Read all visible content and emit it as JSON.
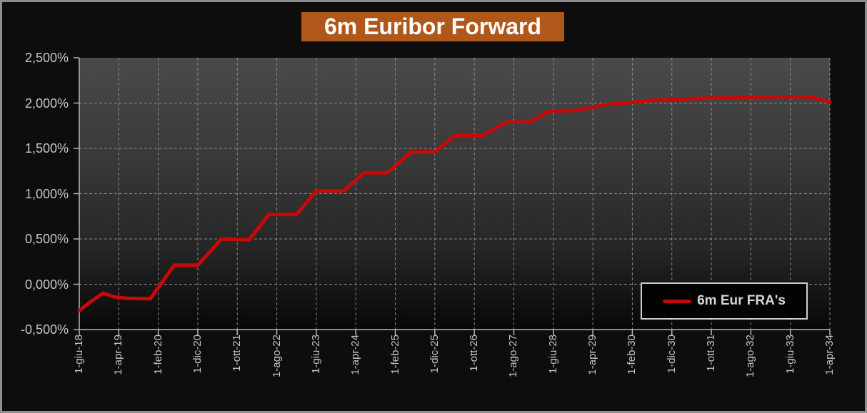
{
  "window": {
    "background": "#0d0d0d",
    "border_color": "#8e8e8e"
  },
  "title": {
    "text": "6m Euribor Forward",
    "bg_color": "#b0571a",
    "text_color": "#ffffff"
  },
  "legend": {
    "label": "6m Eur FRA's",
    "swatch_color": "#c90808"
  },
  "chart_data": {
    "type": "line",
    "title": "6m Euribor Forward",
    "series_name": "6m Eur FRA's",
    "line_color": "#c90808",
    "grid": "dashed",
    "legend_position": "inside-bottom-right",
    "ylabel": "",
    "xlabel": "",
    "ylim": [
      -0.5,
      2.5
    ],
    "y_ticks": [
      2.5,
      2.0,
      1.5,
      1.0,
      0.5,
      0.0,
      -0.5
    ],
    "y_tick_labels": [
      "2,500%",
      "2,000%",
      "1,500%",
      "1,000%",
      "0,500%",
      "0,000%",
      "-0,500%"
    ],
    "x_tick_labels": [
      "1-giu-18",
      "1-apr-19",
      "1-feb-20",
      "1-dic-20",
      "1-ott-21",
      "1-ago-22",
      "1-giu-23",
      "1-apr-24",
      "1-feb-25",
      "1-dic-25",
      "1-ott-26",
      "1-ago-27",
      "1-giu-28",
      "1-apr-29",
      "1-feb-30",
      "1-dic-30",
      "1-ott-31",
      "1-ago-32",
      "1-giu-33",
      "1-apr-34"
    ],
    "x_months_total": 190,
    "points": [
      {
        "date": "1-giu-18",
        "m": 0,
        "v": -0.29
      },
      {
        "date": "1-set-18",
        "m": 3,
        "v": -0.19
      },
      {
        "date": "1-dic-18",
        "m": 6,
        "v": -0.1
      },
      {
        "date": "1-mar-19",
        "m": 9,
        "v": -0.14
      },
      {
        "date": "1-giu-19",
        "m": 12,
        "v": -0.155
      },
      {
        "date": "1-dic-19",
        "m": 18,
        "v": -0.16
      },
      {
        "date": "1-giu-20",
        "m": 24,
        "v": 0.21
      },
      {
        "date": "1-dic-20",
        "m": 30,
        "v": 0.21
      },
      {
        "date": "1-giu-21",
        "m": 36,
        "v": 0.5
      },
      {
        "date": "1-gen-22",
        "m": 43,
        "v": 0.49
      },
      {
        "date": "1-giu-22",
        "m": 48,
        "v": 0.77
      },
      {
        "date": "1-gen-23",
        "m": 55,
        "v": 0.77
      },
      {
        "date": "1-giu-23",
        "m": 60,
        "v": 1.03
      },
      {
        "date": "1-gen-24",
        "m": 67,
        "v": 1.03
      },
      {
        "date": "1-giu-24",
        "m": 72,
        "v": 1.23
      },
      {
        "date": "1-dic-24",
        "m": 78,
        "v": 1.23
      },
      {
        "date": "1-giu-25",
        "m": 84,
        "v": 1.46
      },
      {
        "date": "1-dic-25",
        "m": 90,
        "v": 1.46
      },
      {
        "date": "1-mag-26",
        "m": 95,
        "v": 1.64
      },
      {
        "date": "1-dic-26",
        "m": 102,
        "v": 1.64
      },
      {
        "date": "1-giu-27",
        "m": 108,
        "v": 1.79
      },
      {
        "date": "1-dic-27",
        "m": 114,
        "v": 1.79
      },
      {
        "date": "1-mag-28",
        "m": 119,
        "v": 1.91
      },
      {
        "date": "1-dic-28",
        "m": 126,
        "v": 1.92
      },
      {
        "date": "1-lug-29",
        "m": 133,
        "v": 1.98
      },
      {
        "date": "1-dic-29",
        "m": 138,
        "v": 2.0
      },
      {
        "date": "1-lug-30",
        "m": 145,
        "v": 2.03
      },
      {
        "date": "1-mag-31",
        "m": 155,
        "v": 2.05
      },
      {
        "date": "1-apr-32",
        "m": 166,
        "v": 2.06
      },
      {
        "date": "1-apr-33",
        "m": 178,
        "v": 2.07
      },
      {
        "date": "1-ott-33",
        "m": 184,
        "v": 2.07
      },
      {
        "date": "1-dic-33",
        "m": 186,
        "v": 2.06
      },
      {
        "date": "1-apr-34",
        "m": 190,
        "v": 2.01
      }
    ],
    "style": {
      "plot_bg_top": "#4a4a4a",
      "plot_bg_bottom": "#070707",
      "grid_color": "#9b9b9b",
      "axis_color": "#b5b5b5",
      "tick_label_color": "#c6c6c6"
    }
  }
}
